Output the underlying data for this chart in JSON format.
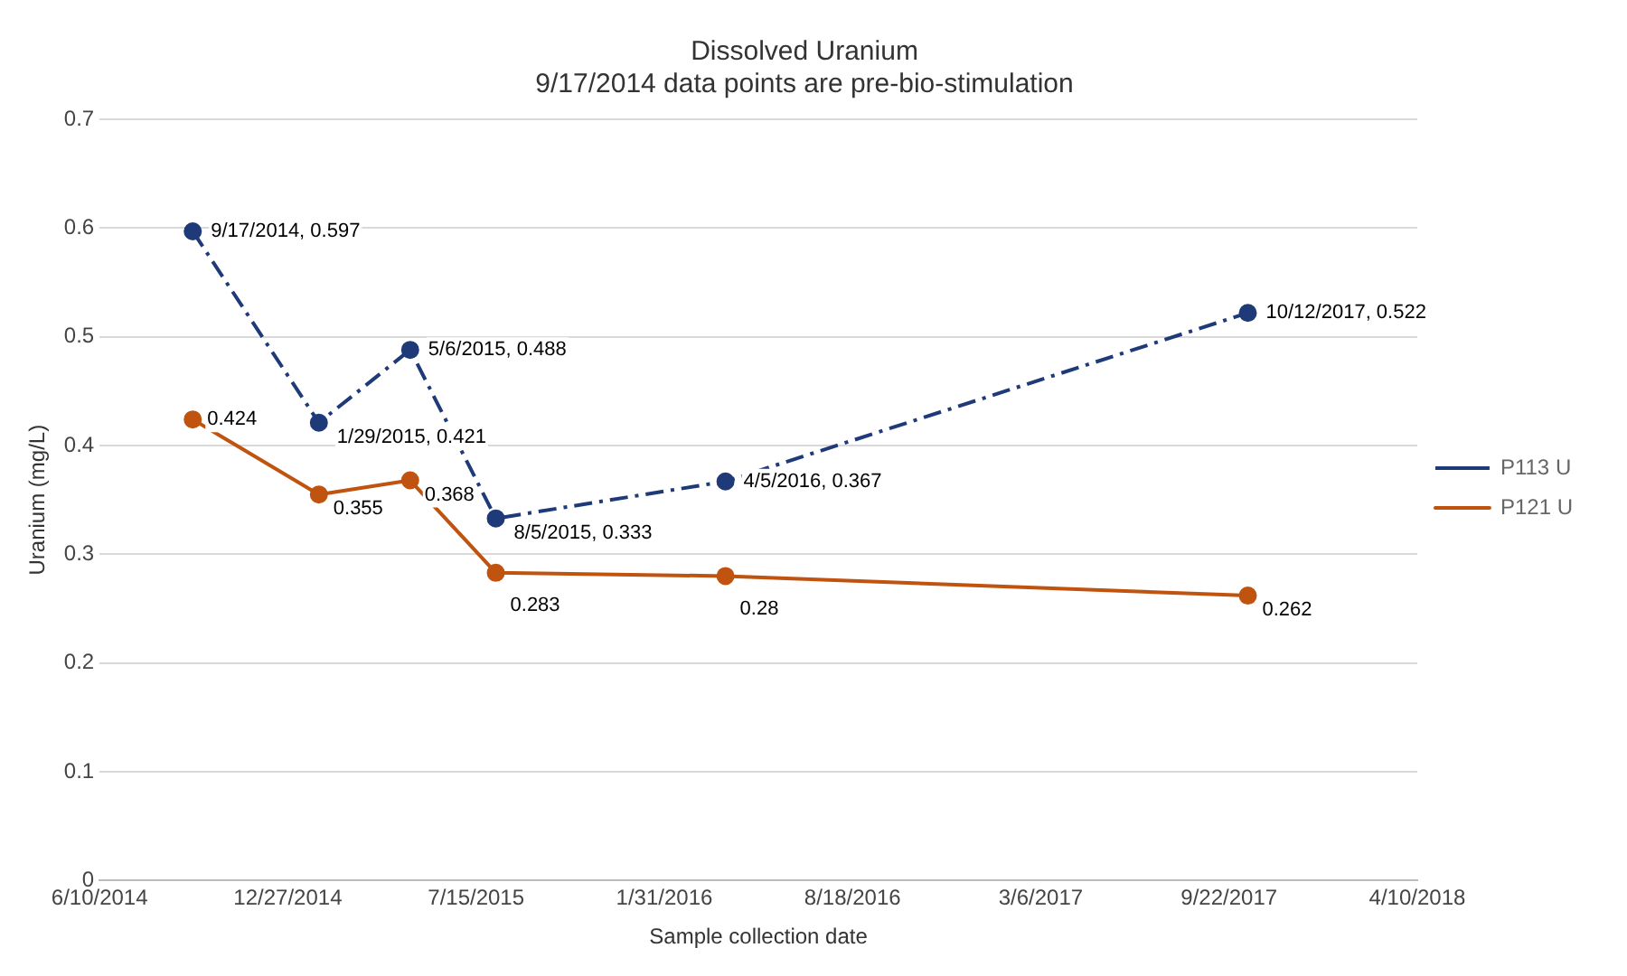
{
  "chart_data": {
    "type": "line",
    "title": "Dissolved Uranium",
    "subtitle": "9/17/2014 data points are pre-bio-stimulation",
    "xlabel": "Sample collection date",
    "ylabel": "Uranium (mg/L)",
    "x": [
      "2014-09-17",
      "2015-01-29",
      "2015-05-06",
      "2015-08-05",
      "2016-04-05",
      "2017-10-12"
    ],
    "series": [
      {
        "name": "P113 U",
        "color": "#1f3a78",
        "line_style": "dashed",
        "values": [
          0.597,
          0.421,
          0.488,
          0.333,
          0.367,
          0.522
        ],
        "value_labels": [
          "9/17/2014, 0.597",
          "1/29/2015, 0.421",
          "5/6/2015, 0.488",
          "8/5/2015, 0.333",
          "4/5/2016, 0.367",
          "10/12/2017, 0.522"
        ]
      },
      {
        "name": "P121 U",
        "color": "#c0530f",
        "line_style": "solid",
        "values": [
          0.424,
          0.355,
          0.368,
          0.283,
          0.28,
          0.262
        ],
        "value_labels": [
          "0.424",
          "0.355",
          "0.368",
          "0.283",
          "0.28",
          "0.262"
        ]
      }
    ],
    "xlim": [
      "2014-06-10",
      "2018-04-10"
    ],
    "xticks": [
      {
        "value": "2014-06-10",
        "label": "6/10/2014"
      },
      {
        "value": "2014-12-27",
        "label": "12/27/2014"
      },
      {
        "value": "2015-07-15",
        "label": "7/15/2015"
      },
      {
        "value": "2016-01-31",
        "label": "1/31/2016"
      },
      {
        "value": "2016-08-18",
        "label": "8/18/2016"
      },
      {
        "value": "2017-03-06",
        "label": "3/6/2017"
      },
      {
        "value": "2017-09-22",
        "label": "9/22/2017"
      },
      {
        "value": "2018-04-10",
        "label": "4/10/2018"
      }
    ],
    "ylim": [
      0,
      0.7
    ],
    "yticks": [
      0,
      0.1,
      0.2,
      0.3,
      0.4,
      0.5,
      0.6,
      0.7
    ],
    "grid": "y",
    "legend": "right",
    "marker": "circle"
  }
}
